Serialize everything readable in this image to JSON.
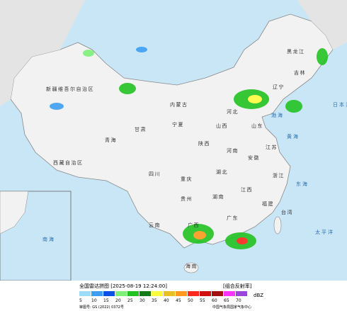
{
  "legend": {
    "title": "全国雷达拼图 [2025-08-19 12:24:00]",
    "product": "[组合反射率]",
    "unit": "dBZ",
    "ticks": [
      5,
      10,
      15,
      20,
      25,
      30,
      35,
      40,
      45,
      50,
      55,
      60,
      65,
      70
    ],
    "colors": [
      "#9ddcf8",
      "#3d9ef2",
      "#0a4fe6",
      "#7ef07a",
      "#22c222",
      "#157a15",
      "#fffc40",
      "#e8c020",
      "#ff9a1c",
      "#ff2a1a",
      "#d21010",
      "#a01010",
      "#ff33ff",
      "#9c44d8"
    ]
  },
  "footer": {
    "approval": "审图号: GS (2022) 0372号",
    "agency": "中国气象局国家气象中心"
  },
  "labels": [
    "新疆维吾尔自治区",
    "西藏自治区",
    "青海",
    "甘肃",
    "内蒙古",
    "黑龙江",
    "吉林",
    "辽宁",
    "河北",
    "山西",
    "陕西",
    "宁夏",
    "四川",
    "重庆",
    "湖北",
    "湖南",
    "河南",
    "山东",
    "江苏",
    "安徽",
    "浙江",
    "江西",
    "福建",
    "贵州",
    "云南",
    "广西",
    "广东",
    "台湾",
    "海南"
  ],
  "seas": [
    "渤海",
    "黄海",
    "东海",
    "日本海",
    "太平洋",
    "南海"
  ]
}
